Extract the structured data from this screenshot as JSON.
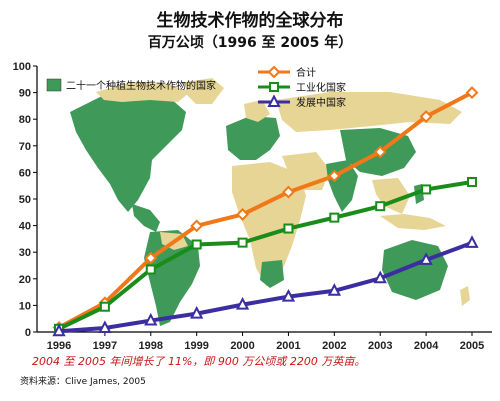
{
  "chart_data": {
    "type": "line",
    "title": "生物技术作物的全球分布",
    "subtitle": "百万公顷（1996 至 2005 年）",
    "x": [
      "1996",
      "1997",
      "1998",
      "1999",
      "2000",
      "2001",
      "2002",
      "2003",
      "2004",
      "2005"
    ],
    "ylim": [
      0,
      100
    ],
    "yticks": [
      0,
      10,
      20,
      30,
      40,
      50,
      60,
      70,
      80,
      90,
      100
    ],
    "series": [
      {
        "name": "合计",
        "color": "#f07818",
        "marker": "diamond",
        "values": [
          1.7,
          11,
          27.8,
          39.9,
          44.2,
          52.6,
          58.7,
          67.7,
          81,
          90
        ]
      },
      {
        "name": "工业化国家",
        "color": "#1a8c1a",
        "marker": "square",
        "values": [
          1.2,
          9.5,
          23.5,
          32.9,
          33.6,
          38.9,
          43,
          47.3,
          53.6,
          56.4
        ]
      },
      {
        "name": "发展中国家",
        "color": "#3a2ea0",
        "marker": "triangle",
        "values": [
          0.3,
          1.5,
          4.3,
          6.9,
          10.3,
          13.3,
          15.5,
          20.2,
          27.1,
          33.5
        ]
      }
    ],
    "map_legend": {
      "label": "二十一个种植生物技术作物的国家",
      "color": "#3f9a5a"
    },
    "legend_position": "top-right",
    "grid": false
  },
  "annotation": "2004 至 2005 年间增长了 11%，即 900 万公顷或 2200 万英亩。",
  "source": "资料来源：Clive James, 2005"
}
